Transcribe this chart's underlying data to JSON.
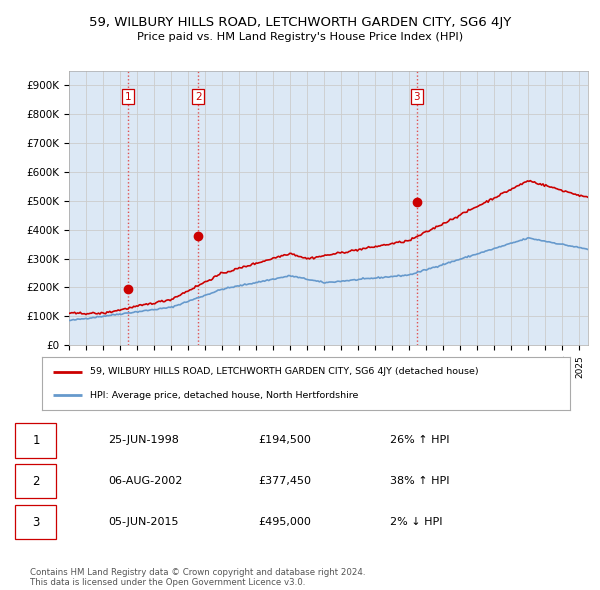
{
  "title": "59, WILBURY HILLS ROAD, LETCHWORTH GARDEN CITY, SG6 4JY",
  "subtitle": "Price paid vs. HM Land Registry's House Price Index (HPI)",
  "ylabel_ticks": [
    "£0",
    "£100K",
    "£200K",
    "£300K",
    "£400K",
    "£500K",
    "£600K",
    "£700K",
    "£800K",
    "£900K"
  ],
  "ytick_vals": [
    0,
    100000,
    200000,
    300000,
    400000,
    500000,
    600000,
    700000,
    800000,
    900000
  ],
  "ylim": [
    0,
    950000
  ],
  "xlim_start": 1995.0,
  "xlim_end": 2025.5,
  "sale_dates": [
    1998.48,
    2002.59,
    2015.43
  ],
  "sale_prices": [
    194500,
    377450,
    495000
  ],
  "sale_labels": [
    "1",
    "2",
    "3"
  ],
  "vline_color": "#e05050",
  "vline_style": ":",
  "sale_marker_color": "#cc0000",
  "hpi_line_color": "#6699cc",
  "price_line_color": "#cc0000",
  "legend_house_label": "59, WILBURY HILLS ROAD, LETCHWORTH GARDEN CITY, SG6 4JY (detached house)",
  "legend_hpi_label": "HPI: Average price, detached house, North Hertfordshire",
  "table_rows": [
    [
      "1",
      "25-JUN-1998",
      "£194,500",
      "26% ↑ HPI"
    ],
    [
      "2",
      "06-AUG-2002",
      "£377,450",
      "38% ↑ HPI"
    ],
    [
      "3",
      "05-JUN-2015",
      "£495,000",
      "2% ↓ HPI"
    ]
  ],
  "footnote": "Contains HM Land Registry data © Crown copyright and database right 2024.\nThis data is licensed under the Open Government Licence v3.0.",
  "bg_color": "#ffffff",
  "grid_color": "#cccccc",
  "plot_bg_color": "#dce8f5"
}
